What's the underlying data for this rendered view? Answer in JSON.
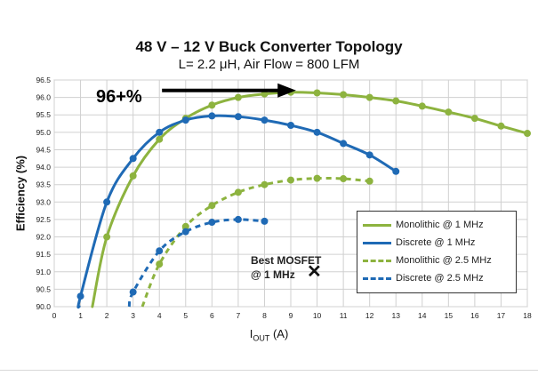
{
  "chart_data": {
    "type": "line",
    "title": "48 V – 12 V Buck Converter Topology",
    "subtitle": "L= 2.2 μH, Air Flow = 800 LFM",
    "ylabel": "Efficiency (%)",
    "xlabel_main": "I",
    "xlabel_sub": "OUT",
    "xlabel_unit": " (A)",
    "xlim": [
      0,
      18
    ],
    "ylim": [
      90.0,
      96.5
    ],
    "xticks": [
      0,
      1,
      2,
      3,
      4,
      5,
      6,
      7,
      8,
      9,
      10,
      11,
      12,
      13,
      14,
      15,
      16,
      17,
      18
    ],
    "yticks": [
      "90.0",
      "90.5",
      "91.0",
      "91.5",
      "92.0",
      "92.5",
      "93.0",
      "93.5",
      "94.0",
      "94.5",
      "95.0",
      "95.5",
      "96.0",
      "96.5"
    ],
    "grid": true,
    "legend_position": "bottom-right",
    "series": [
      {
        "name": "Monolithic @ 1 MHz",
        "color": "#8db33f",
        "dash": false,
        "points": [
          [
            2,
            92.0
          ],
          [
            3,
            93.75
          ],
          [
            4,
            94.8
          ],
          [
            5,
            95.4
          ],
          [
            6,
            95.78
          ],
          [
            7,
            96.0
          ],
          [
            8,
            96.1
          ],
          [
            9,
            96.15
          ],
          [
            10,
            96.13
          ],
          [
            11,
            96.08
          ],
          [
            12,
            96.0
          ],
          [
            13,
            95.9
          ],
          [
            14,
            95.75
          ],
          [
            15,
            95.58
          ],
          [
            16,
            95.4
          ],
          [
            17,
            95.18
          ],
          [
            18,
            94.97
          ]
        ],
        "curve_start": [
          1.45,
          90.0
        ]
      },
      {
        "name": "Discrete @ 1 MHz",
        "color": "#1f6ab5",
        "dash": false,
        "points": [
          [
            1,
            90.3
          ],
          [
            2,
            93.0
          ],
          [
            3,
            94.25
          ],
          [
            4,
            95.0
          ],
          [
            5,
            95.35
          ],
          [
            6,
            95.47
          ],
          [
            7,
            95.45
          ],
          [
            8,
            95.35
          ],
          [
            9,
            95.2
          ],
          [
            10,
            95.0
          ],
          [
            11,
            94.68
          ],
          [
            12,
            94.35
          ],
          [
            13,
            93.88
          ]
        ],
        "curve_start": [
          0.95,
          90.0
        ]
      },
      {
        "name": "Monolithic @ 2.5 MHz",
        "color": "#8db33f",
        "dash": true,
        "points": [
          [
            4,
            91.22
          ],
          [
            5,
            92.3
          ],
          [
            6,
            92.9
          ],
          [
            7,
            93.28
          ],
          [
            8,
            93.5
          ],
          [
            9,
            93.63
          ],
          [
            10,
            93.68
          ],
          [
            11,
            93.67
          ],
          [
            12,
            93.6
          ]
        ],
        "curve_start": [
          3.35,
          90.0
        ]
      },
      {
        "name": "Discrete @ 2.5 MHz",
        "color": "#1f6ab5",
        "dash": true,
        "points": [
          [
            3,
            90.42
          ],
          [
            4,
            91.6
          ],
          [
            5,
            92.15
          ],
          [
            6,
            92.42
          ],
          [
            7,
            92.5
          ],
          [
            8,
            92.45
          ]
        ],
        "curve_start": [
          2.85,
          90.0
        ]
      }
    ],
    "annotations": {
      "callout": "96+%",
      "best_line1": "Best MOSFET",
      "best_line2": "@ 1 MHz",
      "best_marker": "✕",
      "best_point": [
        9.35,
        91.0
      ]
    }
  }
}
